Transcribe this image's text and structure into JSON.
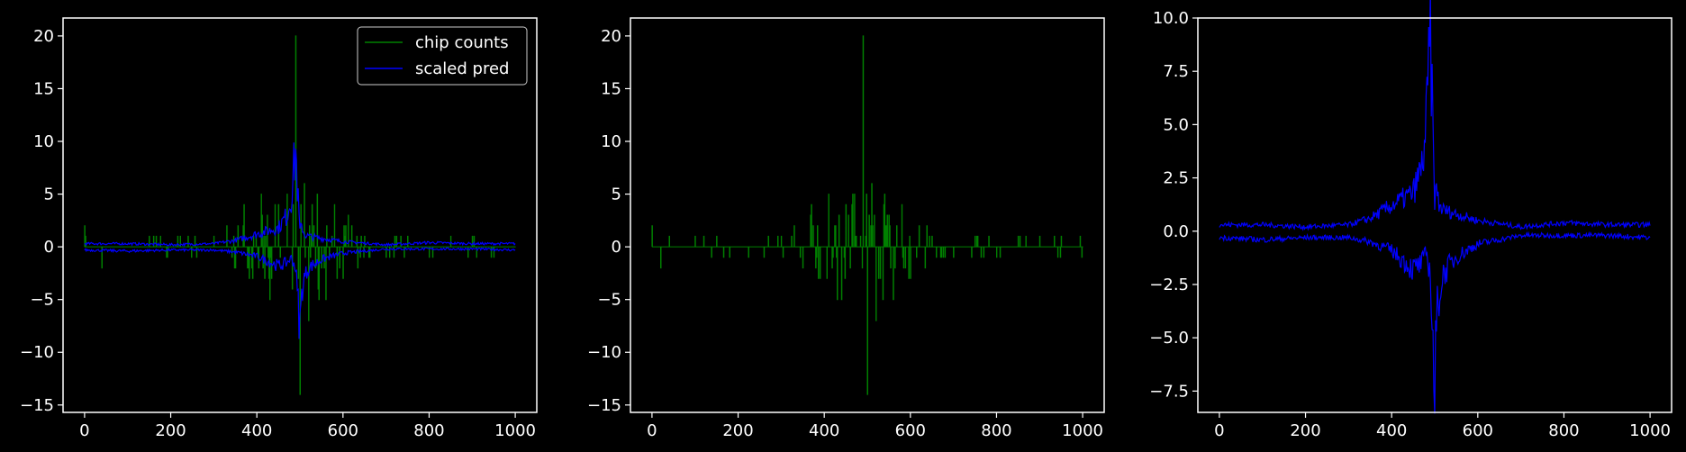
{
  "colors": {
    "background": "#000000",
    "axes": "#ffffff",
    "chip_counts": "#008000",
    "scaled_pred": "#0000ff"
  },
  "legend": {
    "placement": "upper-right",
    "entries": [
      "chip counts",
      "scaled pred"
    ]
  },
  "chart_data": [
    {
      "type": "line",
      "title": "",
      "xlabel": "",
      "ylabel": "",
      "xlim": [
        -50,
        1050
      ],
      "ylim": [
        -15.7,
        21.7
      ],
      "xticks": [
        0,
        200,
        400,
        600,
        800,
        1000
      ],
      "yticks": [
        -15,
        -10,
        -5,
        0,
        5,
        10,
        15,
        20
      ],
      "legend_shown": true,
      "series": [
        {
          "name": "chip counts",
          "color": "#008000",
          "style": "sparse-steps",
          "x": [
            0,
            40,
            75,
            125,
            150,
            260,
            300,
            330,
            350,
            370,
            390,
            410,
            430,
            450,
            470,
            485,
            490,
            495,
            500,
            505,
            510,
            520,
            540,
            560,
            580,
            600,
            620,
            650,
            700,
            750,
            800,
            850,
            900,
            950,
            1000
          ],
          "y": [
            2,
            -2,
            1,
            -4,
            1,
            -1,
            1,
            2,
            -2,
            4,
            -3,
            5,
            -5,
            4,
            5,
            7,
            20,
            -4,
            -14,
            -8,
            6,
            -7,
            5,
            -5,
            4,
            -3,
            2,
            1,
            -1,
            1,
            -1,
            1,
            1,
            -1,
            0
          ]
        },
        {
          "name": "scaled pred",
          "color": "#0000ff",
          "style": "envelope",
          "x": [
            0,
            100,
            200,
            300,
            350,
            400,
            450,
            470,
            480,
            490,
            495,
            500,
            505,
            510,
            520,
            550,
            600,
            700,
            800,
            900,
            1000
          ],
          "upper": [
            0.3,
            0.3,
            0.2,
            0.3,
            0.6,
            1.2,
            1.8,
            3.0,
            4.8,
            9.2,
            5.0,
            1.5,
            2.0,
            1.2,
            1.0,
            0.8,
            0.5,
            0.2,
            0.4,
            0.3,
            0.3
          ],
          "lower": [
            -0.3,
            -0.4,
            -0.3,
            -0.3,
            -0.5,
            -0.9,
            -1.8,
            -1.5,
            -1.0,
            -2.0,
            -5.0,
            -7.6,
            -4.0,
            -3.0,
            -2.0,
            -1.2,
            -0.6,
            -0.2,
            -0.2,
            -0.2,
            -0.3
          ]
        }
      ]
    },
    {
      "type": "line",
      "title": "",
      "xlabel": "",
      "ylabel": "",
      "xlim": [
        -50,
        1050
      ],
      "ylim": [
        -15.7,
        21.7
      ],
      "xticks": [
        0,
        200,
        400,
        600,
        800,
        1000
      ],
      "yticks": [
        -15,
        -10,
        -5,
        0,
        5,
        10,
        15,
        20
      ],
      "legend_shown": false,
      "series": [
        {
          "name": "chip counts",
          "color": "#008000",
          "style": "sparse-steps",
          "x": [
            0,
            20,
            40,
            75,
            100,
            125,
            150,
            180,
            260,
            300,
            330,
            350,
            370,
            390,
            410,
            430,
            450,
            470,
            485,
            490,
            495,
            500,
            505,
            510,
            520,
            540,
            560,
            580,
            600,
            620,
            650,
            700,
            750,
            800,
            850,
            900,
            950,
            1000
          ],
          "y": [
            2,
            -2,
            1,
            -1,
            1,
            -4,
            1,
            -1,
            -1,
            1,
            2,
            -2,
            4,
            -3,
            5,
            -5,
            4,
            5,
            7,
            20,
            -4,
            -14,
            -8,
            6,
            -7,
            5,
            -5,
            4,
            -3,
            2,
            1,
            -1,
            1,
            -1,
            1,
            1,
            1,
            0
          ]
        }
      ]
    },
    {
      "type": "line",
      "title": "",
      "xlabel": "",
      "ylabel": "",
      "xlim": [
        -50,
        1050
      ],
      "ylim": [
        -8.5,
        10.0
      ],
      "xticks": [
        0,
        200,
        400,
        600,
        800,
        1000
      ],
      "yticks": [
        -7.5,
        -5.0,
        -2.5,
        0.0,
        2.5,
        5.0,
        7.5,
        10.0
      ],
      "ytick_labels": [
        "−7.5",
        "−5.0",
        "−2.5",
        "0.0",
        "2.5",
        "5.0",
        "7.5",
        "10.0"
      ],
      "legend_shown": false,
      "series": [
        {
          "name": "scaled pred",
          "color": "#0000ff",
          "style": "envelope",
          "x": [
            0,
            100,
            200,
            300,
            350,
            400,
            450,
            470,
            480,
            490,
            495,
            500,
            505,
            510,
            520,
            550,
            600,
            700,
            800,
            900,
            1000
          ],
          "upper": [
            0.3,
            0.3,
            0.2,
            0.3,
            0.6,
            1.2,
            1.8,
            3.0,
            4.8,
            9.2,
            5.0,
            1.5,
            2.0,
            1.2,
            1.0,
            0.8,
            0.5,
            0.2,
            0.4,
            0.3,
            0.3
          ],
          "lower": [
            -0.3,
            -0.4,
            -0.3,
            -0.3,
            -0.5,
            -0.9,
            -1.8,
            -1.5,
            -1.0,
            -2.0,
            -5.0,
            -7.6,
            -4.0,
            -3.0,
            -2.0,
            -1.2,
            -0.6,
            -0.2,
            -0.2,
            -0.2,
            -0.3
          ]
        }
      ]
    }
  ]
}
